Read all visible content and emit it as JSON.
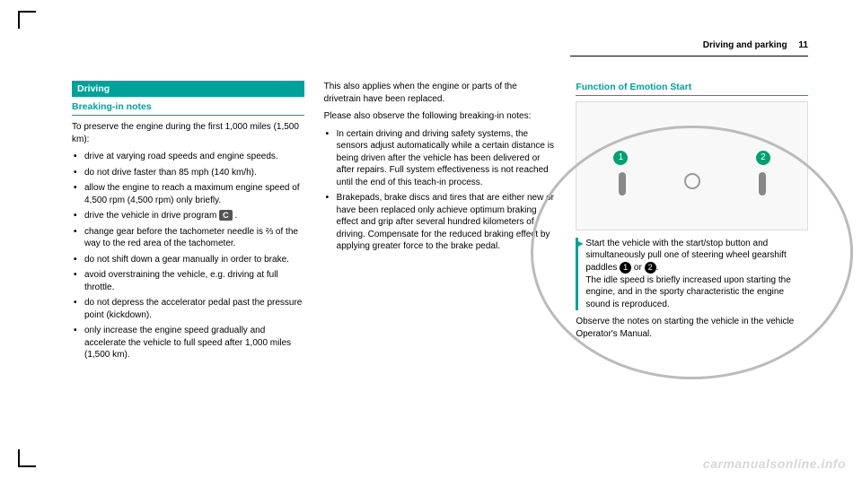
{
  "header": {
    "section": "Driving and parking",
    "page": "11"
  },
  "col1": {
    "section_title": "Driving",
    "subheading": "Breaking-in notes",
    "intro": "To preserve the engine during the first 1,000 miles (1,500 km):",
    "items": [
      "drive at varying road speeds and engine speeds.",
      "do not drive faster than 85 mph (140 km/h).",
      "allow the engine to reach a maximum engine speed of 4,500 rpm (4,500 rpm) only briefly.",
      "drive the vehicle in drive program ",
      "change gear before the tachometer needle is ⅔ of the way to the red area of the tachometer.",
      "do not shift down a gear manually in order to brake.",
      "avoid overstraining the vehicle, e.g. driving at full throttle.",
      "do not depress the accelerator pedal past the pressure point (kickdown).",
      "only increase the engine speed gradually and accelerate the vehicle to full speed after 1,000 miles (1,500 km)."
    ],
    "program_badge": "C"
  },
  "col2": {
    "p1": "This also applies when the engine or parts of the drivetrain have been replaced.",
    "p2": "Please also observe the following breaking-in notes:",
    "items": [
      "In certain driving and driving safety systems, the sensors adjust automatically while a certain distance is being driven after the vehicle has been delivered or after repairs. Full system effectiveness is not reached until the end of this teach-in process.",
      "Brakepads, brake discs and tires that are either new or have been replaced only achieve optimum braking effect and grip after several hundred kilometers of driving. Compensate for the reduced braking effect by applying greater force to the brake pedal."
    ]
  },
  "col3": {
    "subheading": "Function of Emotion Start",
    "instruction_a": "Start the vehicle with the start/stop button and simultaneously pull one of steering wheel gearshift paddles ",
    "instruction_or": " or ",
    "instruction_b": ".",
    "instruction_c": "The idle speed is briefly increased upon starting the engine, and in the sporty characteristic the engine sound is reproduced.",
    "outro": "Observe the notes on starting the vehicle in the vehicle Operator's Manual."
  },
  "watermark": "carmanualsonline.info",
  "colors": {
    "brand": "#00a19a"
  }
}
